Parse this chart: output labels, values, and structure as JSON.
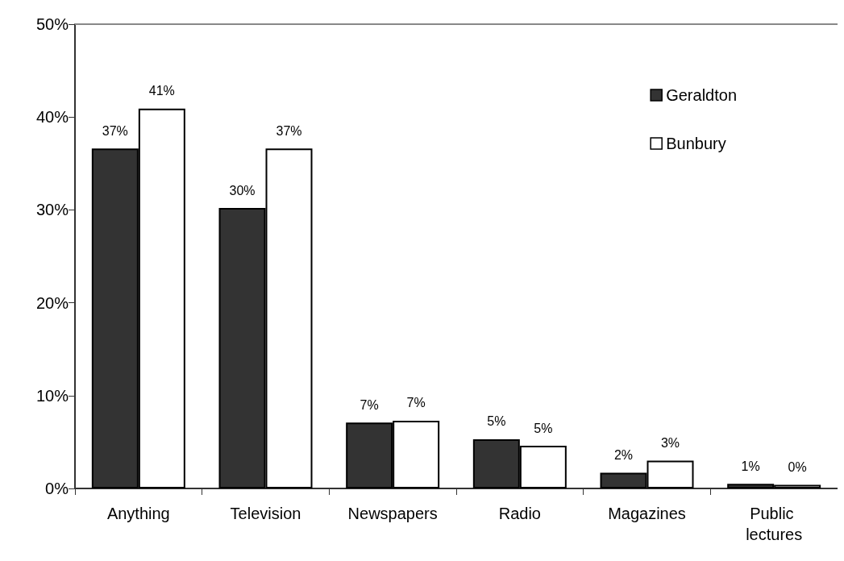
{
  "chart_data": {
    "type": "bar",
    "categories": [
      "Anything",
      "Television",
      "Newspapers",
      "Radio",
      "Magazines",
      "Public lectures"
    ],
    "series": [
      {
        "name": "Geraldton",
        "color": "#333333",
        "values": [
          36.6,
          30.2,
          7.1,
          5.3,
          1.7,
          0.5
        ],
        "value_labels": [
          "37%",
          "30%",
          "7%",
          "5%",
          "2%",
          "1%"
        ]
      },
      {
        "name": "Bunbury",
        "color": "#ffffff",
        "values": [
          40.9,
          36.6,
          7.3,
          4.6,
          3.0,
          0.4
        ],
        "value_labels": [
          "41%",
          "37%",
          "7%",
          "5%",
          "3%",
          "0%"
        ]
      }
    ],
    "ylim": [
      0,
      50
    ],
    "yticks": [
      {
        "value": 0,
        "label": "0%"
      },
      {
        "value": 10,
        "label": "10%"
      },
      {
        "value": 20,
        "label": "20%"
      },
      {
        "value": 30,
        "label": "30%"
      },
      {
        "value": 40,
        "label": "40%"
      },
      {
        "value": 50,
        "label": "50%"
      }
    ],
    "grid": false,
    "legend": "top right"
  }
}
